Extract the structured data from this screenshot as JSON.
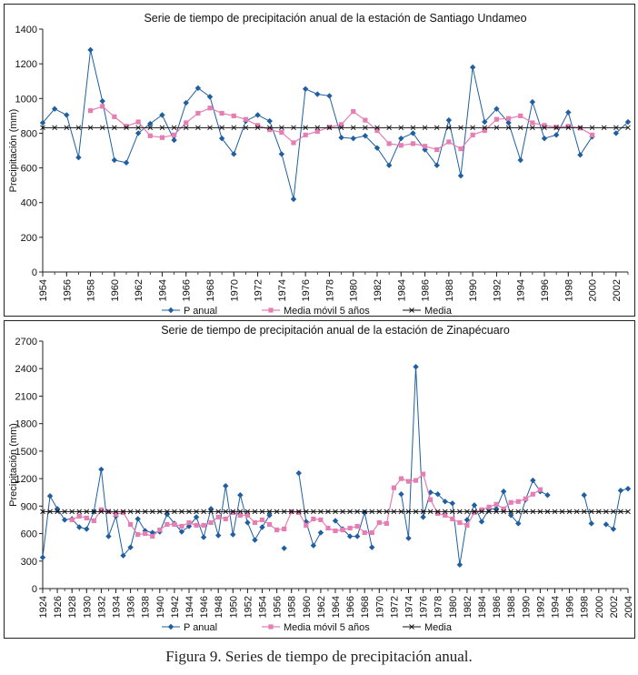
{
  "caption": "Figura 9. Series de tiempo de precipitación anual.",
  "colors": {
    "p_anual": "#1f5fa0",
    "media_movil": "#e57fb3",
    "media": "#111111",
    "axis": "#222222"
  },
  "chart_data": [
    {
      "type": "line",
      "title": "Serie de tiempo de precipitación anual de la estación de Santiago Undameo",
      "ylabel": "Precipitación (mm)",
      "xlabel": "",
      "ylim": [
        0,
        1400
      ],
      "yticks": [
        0,
        200,
        400,
        600,
        800,
        1000,
        1200,
        1400
      ],
      "xlim": [
        1954,
        2003
      ],
      "xticks": [
        1954,
        1956,
        1958,
        1960,
        1962,
        1964,
        1966,
        1968,
        1970,
        1972,
        1974,
        1976,
        1978,
        1980,
        1982,
        1984,
        1986,
        1988,
        1990,
        1992,
        1994,
        1996,
        1998,
        2000,
        2002
      ],
      "legend": [
        "P anual",
        "Media móvil 5 años",
        "Media"
      ],
      "series": [
        {
          "name": "P anual",
          "x": [
            1954,
            1955,
            1956,
            1957,
            1958,
            1959,
            1960,
            1961,
            1962,
            1963,
            1964,
            1965,
            1966,
            1967,
            1968,
            1969,
            1970,
            1971,
            1972,
            1973,
            1974,
            1975,
            1976,
            1977,
            1978,
            1979,
            1980,
            1981,
            1982,
            1983,
            1984,
            1985,
            1986,
            1987,
            1988,
            1989,
            1990,
            1991,
            1992,
            1993,
            1994,
            1995,
            1996,
            1997,
            1998,
            1999,
            2000,
            2001,
            2002,
            2003
          ],
          "values": [
            860,
            940,
            905,
            660,
            1280,
            985,
            645,
            630,
            800,
            855,
            905,
            760,
            975,
            1060,
            1010,
            770,
            680,
            870,
            905,
            870,
            680,
            420,
            1055,
            1025,
            1015,
            775,
            770,
            785,
            715,
            615,
            770,
            800,
            705,
            615,
            875,
            555,
            1180,
            865,
            940,
            860,
            645,
            980,
            770,
            790,
            920,
            675,
            780,
            null,
            800,
            865
          ]
        },
        {
          "name": "Media móvil 5 años",
          "x": [
            1958,
            1959,
            1960,
            1961,
            1962,
            1963,
            1964,
            1965,
            1966,
            1967,
            1968,
            1969,
            1970,
            1971,
            1972,
            1973,
            1974,
            1975,
            1976,
            1977,
            1978,
            1979,
            1980,
            1981,
            1982,
            1983,
            1984,
            1985,
            1986,
            1987,
            1988,
            1989,
            1990,
            1991,
            1992,
            1993,
            1994,
            1995,
            1996,
            1997,
            1998,
            1999,
            2000
          ],
          "values": [
            930,
            955,
            895,
            840,
            865,
            785,
            775,
            790,
            860,
            915,
            945,
            915,
            900,
            880,
            845,
            820,
            805,
            745,
            790,
            810,
            835,
            850,
            925,
            875,
            815,
            740,
            730,
            740,
            725,
            705,
            750,
            710,
            790,
            815,
            880,
            885,
            900,
            860,
            845,
            835,
            840,
            830,
            790
          ]
        },
        {
          "name": "Media",
          "x": [
            1954,
            1955,
            1956,
            1957,
            1958,
            1959,
            1960,
            1961,
            1962,
            1963,
            1964,
            1965,
            1966,
            1967,
            1968,
            1969,
            1970,
            1971,
            1972,
            1973,
            1974,
            1975,
            1976,
            1977,
            1978,
            1979,
            1980,
            1981,
            1982,
            1983,
            1984,
            1985,
            1986,
            1987,
            1988,
            1989,
            1990,
            1991,
            1992,
            1993,
            1994,
            1995,
            1996,
            1997,
            1998,
            1999,
            2000,
            2001,
            2002,
            2003
          ],
          "constant": 832
        }
      ]
    },
    {
      "type": "line",
      "title": "Serie de tiempo de precipitación anual de la estación de Zinapécuaro",
      "ylabel": "Precipitación (mm)",
      "xlabel": "",
      "ylim": [
        0,
        2700
      ],
      "yticks": [
        0,
        300,
        600,
        900,
        1200,
        1500,
        1800,
        2100,
        2400,
        2700
      ],
      "xlim": [
        1924,
        2004
      ],
      "xticks": [
        1924,
        1926,
        1928,
        1930,
        1932,
        1934,
        1936,
        1938,
        1940,
        1942,
        1944,
        1946,
        1948,
        1950,
        1952,
        1954,
        1956,
        1958,
        1960,
        1962,
        1964,
        1966,
        1968,
        1970,
        1972,
        1974,
        1976,
        1978,
        1980,
        1982,
        1984,
        1986,
        1988,
        1990,
        1992,
        1994,
        1996,
        1998,
        2000,
        2002,
        2004
      ],
      "legend": [
        "P anual",
        "Media móvil 5 años",
        "Media"
      ],
      "series": [
        {
          "name": "P anual",
          "x": [
            1924,
            1925,
            1926,
            1927,
            1928,
            1929,
            1930,
            1931,
            1932,
            1933,
            1934,
            1935,
            1936,
            1937,
            1938,
            1939,
            1940,
            1941,
            1942,
            1943,
            1944,
            1945,
            1946,
            1947,
            1948,
            1949,
            1950,
            1951,
            1952,
            1953,
            1954,
            1955,
            1956,
            1957,
            1958,
            1959,
            1960,
            1961,
            1962,
            1963,
            1964,
            1965,
            1966,
            1967,
            1968,
            1969,
            1970,
            1971,
            1972,
            1973,
            1974,
            1975,
            1976,
            1977,
            1978,
            1979,
            1980,
            1981,
            1982,
            1983,
            1984,
            1985,
            1986,
            1987,
            1988,
            1989,
            1990,
            1991,
            1992,
            1993,
            1994,
            1995,
            1996,
            1997,
            1998,
            1999,
            2000,
            2001,
            2002,
            2003,
            2004
          ],
          "values": [
            340,
            1010,
            870,
            750,
            760,
            670,
            650,
            840,
            1300,
            570,
            790,
            360,
            450,
            760,
            630,
            610,
            620,
            810,
            710,
            620,
            680,
            780,
            560,
            870,
            580,
            1120,
            590,
            1020,
            720,
            530,
            670,
            800,
            null,
            440,
            null,
            1260,
            730,
            470,
            610,
            null,
            740,
            650,
            570,
            570,
            830,
            450,
            null,
            null,
            null,
            1030,
            550,
            2420,
            780,
            1050,
            1030,
            950,
            930,
            260,
            750,
            910,
            730,
            870,
            870,
            1060,
            800,
            710,
            970,
            1180,
            1060,
            1020,
            null,
            null,
            null,
            null,
            1020,
            710,
            null,
            700,
            650,
            1070,
            1090
          ]
        },
        {
          "name": "Media móvil 5 años",
          "x": [
            1928,
            1929,
            1930,
            1931,
            1932,
            1933,
            1934,
            1935,
            1936,
            1937,
            1938,
            1939,
            1940,
            1941,
            1942,
            1943,
            1944,
            1945,
            1946,
            1947,
            1948,
            1949,
            1950,
            1951,
            1952,
            1953,
            1954,
            1955,
            1956,
            1957,
            1958,
            1959,
            1960,
            1961,
            1962,
            1963,
            1964,
            1965,
            1966,
            1967,
            1968,
            1969,
            1970,
            1971,
            1972,
            1973,
            1974,
            1975,
            1976,
            1977,
            1978,
            1979,
            1980,
            1981,
            1982,
            1983,
            1984,
            1985,
            1986,
            1987,
            1988,
            1989,
            1990,
            1991,
            1992
          ],
          "values": [
            750,
            790,
            770,
            740,
            860,
            840,
            810,
            830,
            700,
            590,
            600,
            570,
            640,
            700,
            700,
            680,
            720,
            690,
            690,
            720,
            780,
            760,
            830,
            800,
            800,
            720,
            750,
            700,
            640,
            650,
            840,
            830,
            690,
            760,
            750,
            660,
            630,
            640,
            660,
            680,
            610,
            610,
            720,
            710,
            1100,
            1200,
            1170,
            1180,
            1250,
            970,
            820,
            800,
            760,
            720,
            690,
            830,
            860,
            890,
            920,
            870,
            940,
            950,
            980,
            1030,
            1080
          ]
        },
        {
          "name": "Media",
          "x": [
            1924,
            1925,
            1926,
            1927,
            1928,
            1929,
            1930,
            1931,
            1932,
            1933,
            1934,
            1935,
            1936,
            1937,
            1938,
            1939,
            1940,
            1941,
            1942,
            1943,
            1944,
            1945,
            1946,
            1947,
            1948,
            1949,
            1950,
            1951,
            1952,
            1953,
            1954,
            1955,
            1956,
            1957,
            1958,
            1959,
            1960,
            1961,
            1962,
            1963,
            1964,
            1965,
            1966,
            1967,
            1968,
            1969,
            1970,
            1971,
            1972,
            1973,
            1974,
            1975,
            1976,
            1977,
            1978,
            1979,
            1980,
            1981,
            1982,
            1983,
            1984,
            1985,
            1986,
            1987,
            1988,
            1989,
            1990,
            1991,
            1992,
            1993,
            1994,
            1995,
            1996,
            1997,
            1998,
            1999,
            2000,
            2001,
            2002,
            2003,
            2004
          ],
          "constant": 840
        }
      ]
    }
  ]
}
